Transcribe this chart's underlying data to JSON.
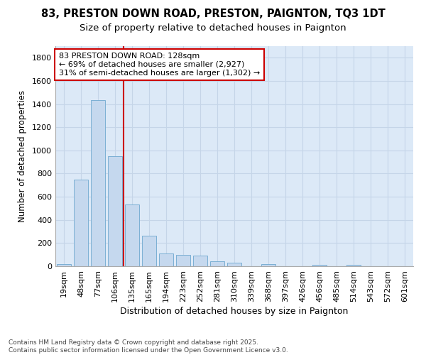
{
  "title": "83, PRESTON DOWN ROAD, PRESTON, PAIGNTON, TQ3 1DT",
  "subtitle": "Size of property relative to detached houses in Paignton",
  "xlabel": "Distribution of detached houses by size in Paignton",
  "ylabel": "Number of detached properties",
  "categories": [
    "19sqm",
    "48sqm",
    "77sqm",
    "106sqm",
    "135sqm",
    "165sqm",
    "194sqm",
    "223sqm",
    "252sqm",
    "281sqm",
    "310sqm",
    "339sqm",
    "368sqm",
    "397sqm",
    "426sqm",
    "456sqm",
    "485sqm",
    "514sqm",
    "543sqm",
    "572sqm",
    "601sqm"
  ],
  "values": [
    20,
    750,
    1435,
    950,
    535,
    265,
    110,
    100,
    90,
    45,
    30,
    0,
    18,
    0,
    0,
    15,
    0,
    15,
    0,
    0,
    0
  ],
  "bar_color": "#c5d8ee",
  "bar_edgecolor": "#7bafd4",
  "vline_color": "#cc0000",
  "annotation_text": "83 PRESTON DOWN ROAD: 128sqm\n← 69% of detached houses are smaller (2,927)\n31% of semi-detached houses are larger (1,302) →",
  "annotation_box_facecolor": "#ffffff",
  "annotation_box_edgecolor": "#cc0000",
  "ylim": [
    0,
    1900
  ],
  "yticks": [
    0,
    200,
    400,
    600,
    800,
    1000,
    1200,
    1400,
    1600,
    1800
  ],
  "grid_color": "#c5d5e8",
  "fig_bg_color": "#ffffff",
  "plot_bg_color": "#dce9f7",
  "footer": "Contains HM Land Registry data © Crown copyright and database right 2025.\nContains public sector information licensed under the Open Government Licence v3.0.",
  "title_fontsize": 10.5,
  "subtitle_fontsize": 9.5,
  "xlabel_fontsize": 9,
  "ylabel_fontsize": 8.5,
  "tick_fontsize": 8,
  "annotation_fontsize": 8,
  "footer_fontsize": 6.5
}
